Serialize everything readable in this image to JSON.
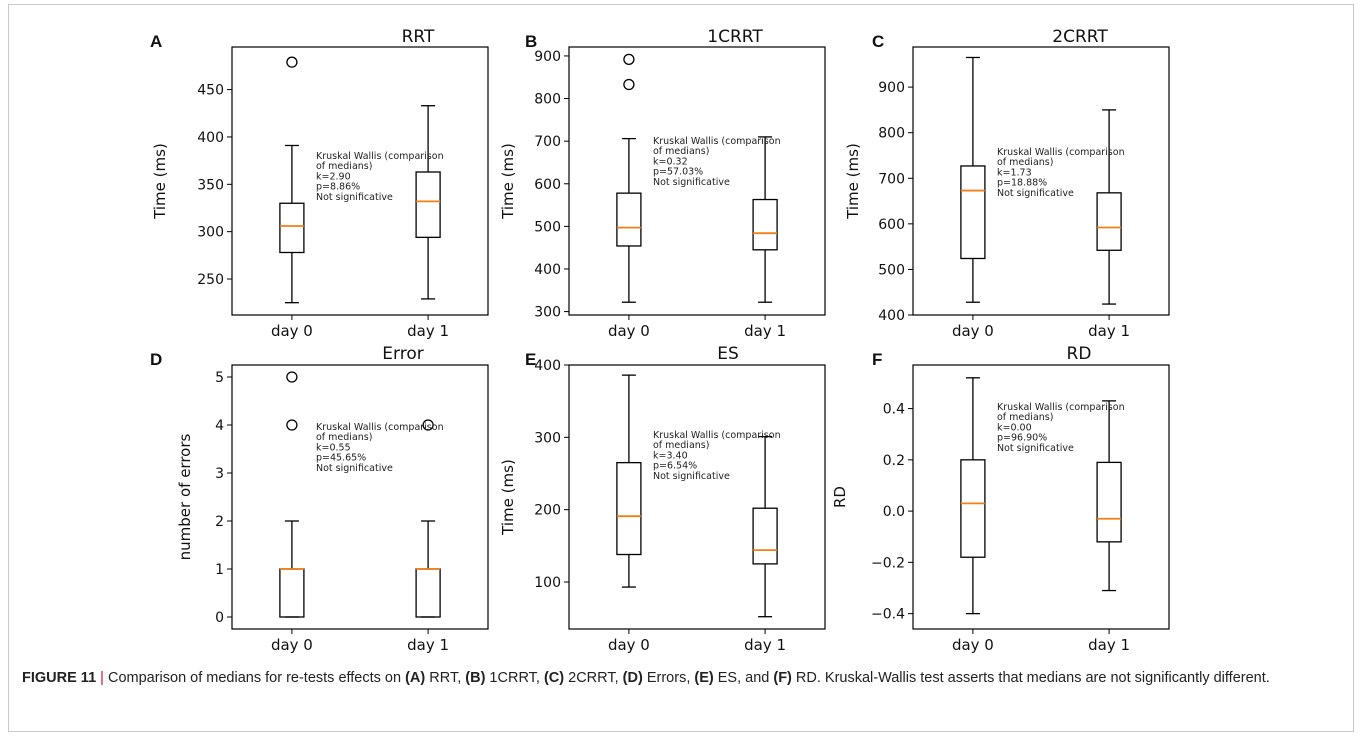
{
  "chart_data": [
    {
      "type": "box",
      "panel_label": "A",
      "title": "RRT",
      "ylabel": "Time (ms)",
      "xlabel": "",
      "ylim": [
        212,
        495
      ],
      "yticks": [
        250,
        300,
        350,
        400,
        450
      ],
      "categories": [
        "day 0",
        "day 1"
      ],
      "boxes": [
        {
          "whisker_low": 225,
          "q1": 278,
          "median": 306,
          "q3": 330,
          "whisker_high": 391,
          "outliers": [
            479
          ]
        },
        {
          "whisker_low": 229,
          "q1": 294,
          "median": 332,
          "q3": 363,
          "whisker_high": 433,
          "outliers": []
        }
      ],
      "annotation": [
        "Kruskal Wallis (comparison",
        "of medians)",
        "k=2.90",
        "p=8.86%",
        "Not significative"
      ]
    },
    {
      "type": "box",
      "panel_label": "B",
      "title": "1CRRT",
      "ylabel": "Time (ms)",
      "xlabel": "",
      "ylim": [
        292,
        921
      ],
      "yticks": [
        300,
        400,
        500,
        600,
        700,
        800,
        900
      ],
      "categories": [
        "day 0",
        "day 1"
      ],
      "boxes": [
        {
          "whisker_low": 322,
          "q1": 454,
          "median": 497,
          "q3": 578,
          "whisker_high": 706,
          "outliers": [
            833,
            892
          ]
        },
        {
          "whisker_low": 322,
          "q1": 445,
          "median": 484,
          "q3": 563,
          "whisker_high": 710,
          "outliers": []
        }
      ],
      "annotation": [
        "Kruskal Wallis (comparison",
        "of medians)",
        "k=0.32",
        "p=57.03%",
        "Not significative"
      ]
    },
    {
      "type": "box",
      "panel_label": "C",
      "title": "2CRRT",
      "ylabel": "Time (ms)",
      "xlabel": "",
      "ylim": [
        400,
        988
      ],
      "yticks": [
        400,
        500,
        600,
        700,
        800,
        900
      ],
      "categories": [
        "day 0",
        "day 1"
      ],
      "boxes": [
        {
          "whisker_low": 428,
          "q1": 524,
          "median": 673,
          "q3": 727,
          "whisker_high": 965,
          "outliers": []
        },
        {
          "whisker_low": 424,
          "q1": 542,
          "median": 592,
          "q3": 668,
          "whisker_high": 850,
          "outliers": []
        }
      ],
      "annotation": [
        "Kruskal Wallis (comparison",
        "of medians)",
        "k=1.73",
        "p=18.88%",
        "Not significative"
      ]
    },
    {
      "type": "box",
      "panel_label": "D",
      "title": "Error",
      "ylabel": "number of errors",
      "xlabel": "",
      "ylim": [
        -0.25,
        5.25
      ],
      "yticks": [
        0,
        1,
        2,
        3,
        4,
        5
      ],
      "categories": [
        "day 0",
        "day 1"
      ],
      "boxes": [
        {
          "whisker_low": 0,
          "q1": 0,
          "median": 1,
          "q3": 1,
          "whisker_high": 2,
          "outliers": [
            4,
            5
          ]
        },
        {
          "whisker_low": 0,
          "q1": 0,
          "median": 1,
          "q3": 1,
          "whisker_high": 2,
          "outliers": [
            4
          ]
        }
      ],
      "annotation": [
        "Kruskal Wallis (comparison",
        "of medians)",
        "k=0.55",
        "p=45.65%",
        "Not significative"
      ]
    },
    {
      "type": "box",
      "panel_label": "E",
      "title": "ES",
      "ylabel": "Time (ms)",
      "xlabel": "",
      "ylim": [
        35,
        400
      ],
      "yticks": [
        100,
        200,
        300,
        400
      ],
      "categories": [
        "day 0",
        "day 1"
      ],
      "boxes": [
        {
          "whisker_low": 93,
          "q1": 138,
          "median": 191,
          "q3": 265,
          "whisker_high": 386,
          "outliers": []
        },
        {
          "whisker_low": 52,
          "q1": 125,
          "median": 144,
          "q3": 202,
          "whisker_high": 301,
          "outliers": []
        }
      ],
      "annotation": [
        "Kruskal Wallis (comparison",
        "of medians)",
        "k=3.40",
        "p=6.54%",
        "Not significative"
      ]
    },
    {
      "type": "box",
      "panel_label": "F",
      "title": "RD",
      "ylabel": "RD",
      "xlabel": "",
      "ylim": [
        -0.46,
        0.57
      ],
      "yticks": [
        -0.4,
        -0.2,
        0.0,
        0.2,
        0.4
      ],
      "ytick_labels": [
        "−0.4",
        "−0.2",
        "0.0",
        "0.2",
        "0.4"
      ],
      "categories": [
        "day 0",
        "day 1"
      ],
      "boxes": [
        {
          "whisker_low": -0.4,
          "q1": -0.18,
          "median": 0.03,
          "q3": 0.2,
          "whisker_high": 0.52,
          "outliers": []
        },
        {
          "whisker_low": -0.31,
          "q1": -0.12,
          "median": -0.03,
          "q3": 0.19,
          "whisker_high": 0.43,
          "outliers": []
        }
      ],
      "annotation": [
        "Kruskal Wallis (comparison",
        "of medians)",
        "k=0.00",
        "p=96.90%",
        "Not significative"
      ]
    }
  ],
  "caption": {
    "figure_label": "FIGURE 11",
    "separator": " | ",
    "text_1": "Comparison of medians for re-tests effects on ",
    "a_label": "(A)",
    "a_text": " RRT, ",
    "b_label": "(B)",
    "b_text": " 1CRRT, ",
    "c_label": "(C)",
    "c_text": " 2CRRT, ",
    "d_label": "(D)",
    "d_text": " Errors, ",
    "e_label": "(E)",
    "e_text": " ES, and ",
    "f_label": "(F)",
    "f_text": " RD. Kruskal-Wallis test asserts that medians are not significantly different."
  },
  "colors": {
    "median": "#f57f17",
    "box": "#000000",
    "caption_separator": "#c8102e"
  }
}
